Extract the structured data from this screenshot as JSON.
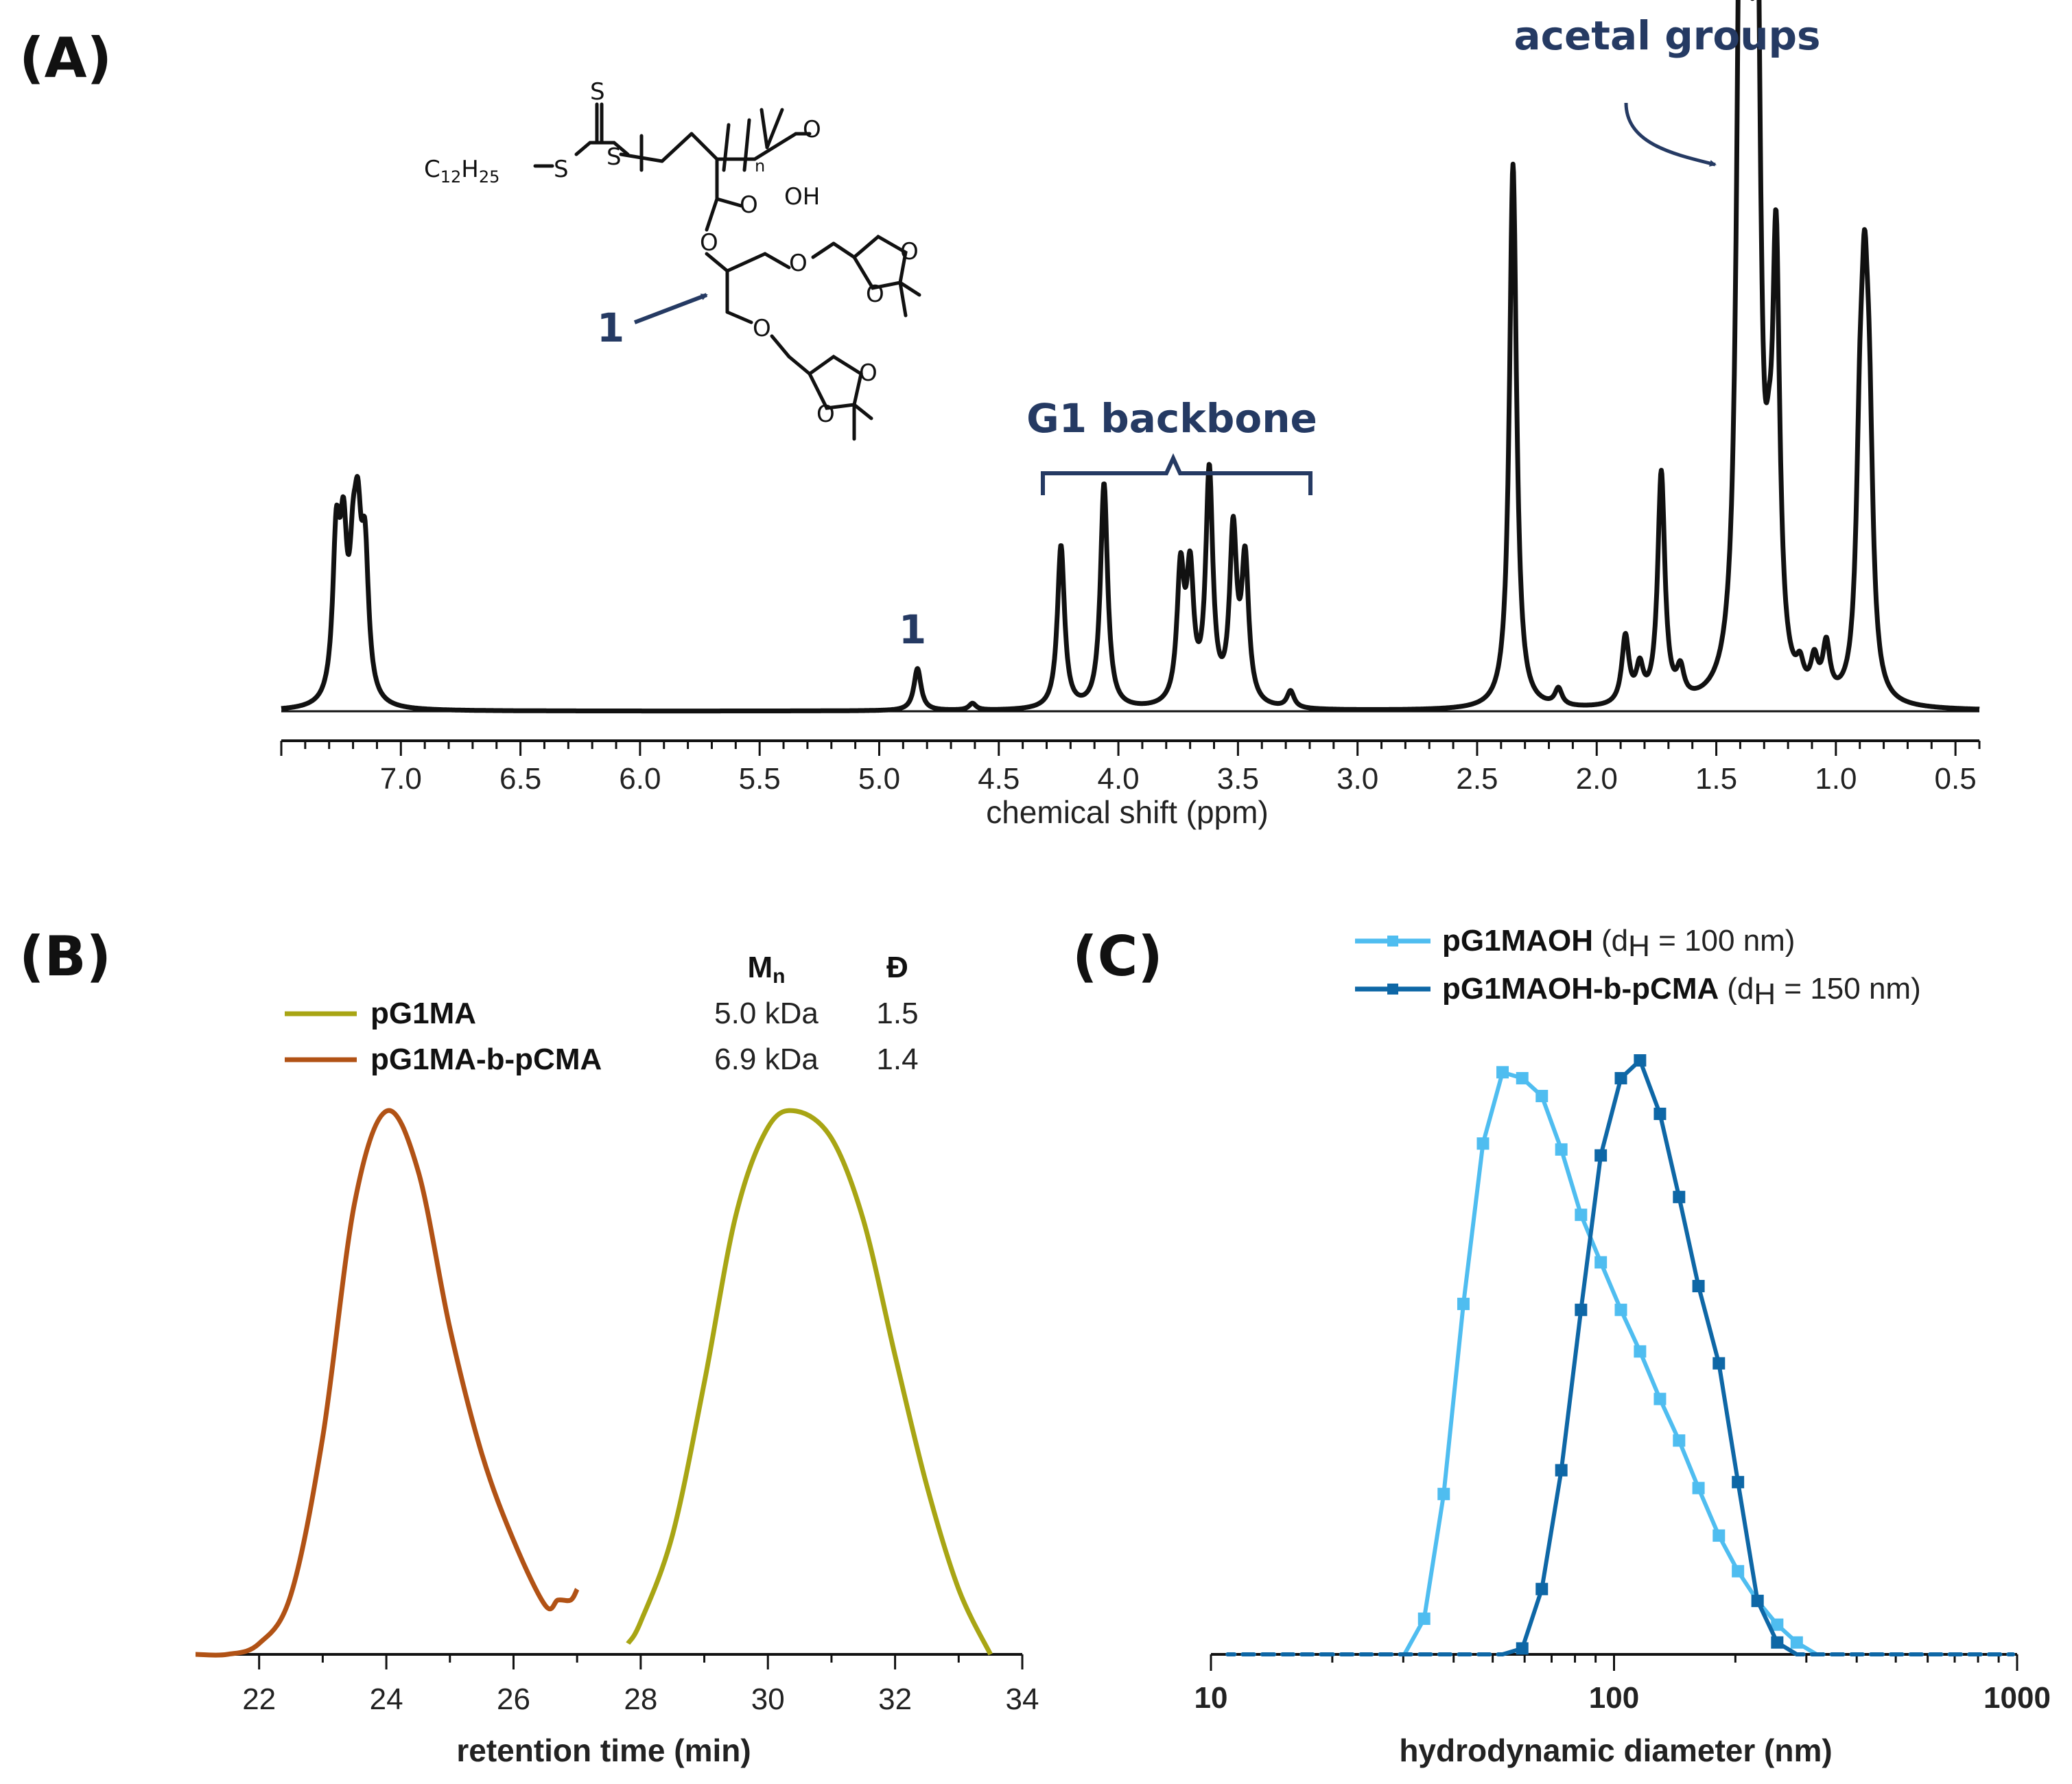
{
  "panels": {
    "a": {
      "label": "(A)",
      "annotations": {
        "acetal": "acetal groups",
        "backbone": "G1 backbone",
        "peak1": "1",
        "struct1": "1"
      },
      "structure": {
        "chain": "C",
        "chain_sub1": "12",
        "chain_h": "H",
        "chain_sub2": "25",
        "s": "S",
        "o": "O",
        "oh": "OH",
        "n": "n"
      }
    },
    "b": {
      "label": "(B)",
      "legend_headers": {
        "mn": "M",
        "mn_sub": "n",
        "d": "Đ"
      },
      "legend": [
        {
          "name": "pG1MA",
          "mn": "5.0 kDa",
          "d": "1.5",
          "color": "#a8a514"
        },
        {
          "name": "pG1MA-b-pCMA",
          "mn": "6.9 kDa",
          "d": "1.4",
          "color": "#b15215"
        }
      ]
    },
    "c": {
      "label": "(C)",
      "legend": [
        {
          "name": "pG1MAOH",
          "d_pre": "(d",
          "d_sub": "H",
          "d_post": " = 100 nm)",
          "color": "#4fbdf0"
        },
        {
          "name": "pG1MAOH-b-pCMA",
          "d_pre": "(d",
          "d_sub": "H",
          "d_post": " = 150 nm)",
          "color": "#0e67a6"
        }
      ]
    }
  },
  "chart_data": [
    {
      "type": "line",
      "xlabel": "chemical shift (ppm)",
      "xlim": [
        7.5,
        0.4
      ],
      "x_reversed": true,
      "x_ticks": [
        "7.0",
        "6.5",
        "6.0",
        "5.5",
        "5.0",
        "4.5",
        "4.0",
        "3.5",
        "3.0",
        "2.5",
        "2.0",
        "1.5",
        "1.0",
        "0.5"
      ],
      "peaks": [
        {
          "x": 7.27,
          "h": 0.27
        },
        {
          "x": 7.24,
          "h": 0.25
        },
        {
          "x": 7.2,
          "h": 0.18
        },
        {
          "x": 7.18,
          "h": 0.24
        },
        {
          "x": 7.15,
          "h": 0.24
        },
        {
          "x": 4.84,
          "h": 0.075
        },
        {
          "x": 4.61,
          "h": 0.012
        },
        {
          "x": 4.24,
          "h": 0.29
        },
        {
          "x": 4.06,
          "h": 0.4
        },
        {
          "x": 3.74,
          "h": 0.23
        },
        {
          "x": 3.7,
          "h": 0.22
        },
        {
          "x": 3.62,
          "h": 0.41
        },
        {
          "x": 3.52,
          "h": 0.3
        },
        {
          "x": 3.47,
          "h": 0.25
        },
        {
          "x": 3.28,
          "h": 0.03
        },
        {
          "x": 2.35,
          "h": 0.97
        },
        {
          "x": 2.16,
          "h": 0.03
        },
        {
          "x": 1.88,
          "h": 0.12
        },
        {
          "x": 1.82,
          "h": 0.06
        },
        {
          "x": 1.73,
          "h": 0.41
        },
        {
          "x": 1.65,
          "h": 0.05
        },
        {
          "x": 1.4,
          "h": 1.22
        },
        {
          "x": 1.37,
          "h": 1.22
        },
        {
          "x": 1.33,
          "h": 1.22
        },
        {
          "x": 1.28,
          "h": 0.16
        },
        {
          "x": 1.25,
          "h": 0.74
        },
        {
          "x": 1.15,
          "h": 0.04
        },
        {
          "x": 1.09,
          "h": 0.06
        },
        {
          "x": 1.04,
          "h": 0.09
        },
        {
          "x": 0.9,
          "h": 0.34
        },
        {
          "x": 0.88,
          "h": 0.53
        },
        {
          "x": 0.86,
          "h": 0.37
        }
      ]
    },
    {
      "type": "line",
      "xlabel": "retention time (min)",
      "xlim": [
        21,
        34
      ],
      "x_ticks": [
        "22",
        "24",
        "26",
        "28",
        "30",
        "32",
        "34"
      ],
      "series": [
        {
          "name": "pG1MA",
          "x": [
            27.8,
            28.0,
            28.5,
            29.0,
            29.5,
            30.0,
            30.45,
            31.0,
            31.5,
            32.0,
            32.5,
            33.0,
            33.5
          ],
          "y": [
            0.02,
            0.06,
            0.22,
            0.5,
            0.81,
            0.97,
            1.0,
            0.95,
            0.8,
            0.55,
            0.31,
            0.12,
            0.0
          ]
        },
        {
          "name": "pG1MA-b-pCMA",
          "x": [
            21.0,
            21.5,
            22.0,
            22.5,
            23.0,
            23.5,
            24.0,
            24.5,
            25.0,
            25.5,
            26.0,
            26.5,
            26.7,
            26.9,
            27.0
          ],
          "y": [
            0.0,
            0.0,
            0.02,
            0.11,
            0.4,
            0.83,
            1.0,
            0.89,
            0.6,
            0.37,
            0.21,
            0.09,
            0.1,
            0.1,
            0.12
          ]
        }
      ]
    },
    {
      "type": "line",
      "xlabel": "hydrodynamic diameter (nm)",
      "x_scale": "log",
      "xlim": [
        10,
        1000
      ],
      "x_ticks": [
        "10",
        "100",
        "1000"
      ],
      "series": [
        {
          "name": "pG1MAOH",
          "x": [
            11,
            12.3,
            13.8,
            15.4,
            17.2,
            19.3,
            21.6,
            24.1,
            27,
            30.2,
            33.8,
            37.8,
            42.3,
            47.3,
            52.9,
            59.2,
            66.2,
            74,
            82.8,
            92.7,
            104,
            116,
            130,
            145,
            162,
            182,
            203,
            227,
            254,
            284,
            318,
            356,
            398,
            446,
            499,
            558,
            624,
            698,
            781,
            873,
            977
          ],
          "y": [
            0,
            0,
            0,
            0,
            0,
            0,
            0,
            0,
            0,
            0,
            0.06,
            0.27,
            0.59,
            0.86,
            0.98,
            0.97,
            0.94,
            0.85,
            0.74,
            0.66,
            0.58,
            0.51,
            0.43,
            0.36,
            0.28,
            0.2,
            0.14,
            0.09,
            0.05,
            0.02,
            0,
            0,
            0,
            0,
            0,
            0,
            0,
            0,
            0,
            0,
            0
          ]
        },
        {
          "name": "pG1MAOH-b-pCMA",
          "x": [
            11,
            12.3,
            13.8,
            15.4,
            17.2,
            19.3,
            21.6,
            24.1,
            27,
            30.2,
            33.8,
            37.8,
            42.3,
            47.3,
            52.9,
            59.2,
            66.2,
            74,
            82.8,
            92.7,
            104,
            116,
            130,
            145,
            162,
            182,
            203,
            227,
            254,
            284,
            318,
            356,
            398,
            446,
            499,
            558,
            624,
            698,
            781,
            873,
            977
          ],
          "y": [
            0,
            0,
            0,
            0,
            0,
            0,
            0,
            0,
            0,
            0,
            0,
            0,
            0,
            0,
            0,
            0.01,
            0.11,
            0.31,
            0.58,
            0.84,
            0.97,
            1.0,
            0.91,
            0.77,
            0.62,
            0.49,
            0.29,
            0.09,
            0.02,
            0,
            0,
            0,
            0,
            0,
            0,
            0,
            0,
            0,
            0,
            0,
            0
          ]
        }
      ]
    }
  ]
}
